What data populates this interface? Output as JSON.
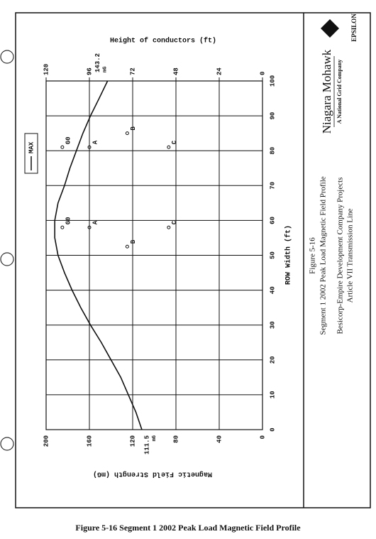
{
  "caption": "Figure 5-16 Segment 1 2002 Peak Load Magnetic Field Profile",
  "title_block": {
    "figure": "Figure 5-16",
    "title": "Segment 1 2002 Peak Load Magnetic Field Profile",
    "project": "Besicorp-Empire Development Company Projects",
    "line": "Article VII Transmission Line",
    "company": "Niagara Mohawk",
    "parent": "A National Grid Company",
    "consultant": "EPSILON"
  },
  "chart_data": {
    "type": "line",
    "x_label": "ROW Width (ft)",
    "y_label": "Magnetic Field Strength (mG)",
    "y2_label": "Height of conductors (ft)",
    "x": [
      0,
      5,
      10,
      15,
      20,
      25,
      30,
      35,
      40,
      45,
      50,
      55,
      60,
      65,
      70,
      75,
      80,
      85,
      90,
      95,
      100
    ],
    "series": [
      {
        "name": "MAX",
        "color": "#111111",
        "values": [
          111.5,
          117,
          124,
          131,
          140,
          149,
          159,
          168,
          176,
          183,
          189,
          192,
          192,
          189,
          183,
          178,
          172,
          166,
          159,
          151,
          143.2
        ]
      }
    ],
    "annotations": [
      {
        "x": 0,
        "value": 111.5,
        "unit": "mG"
      },
      {
        "x": 100,
        "value": 143.2,
        "unit": "mG"
      }
    ],
    "conductors": [
      {
        "label": "G0",
        "x": 58,
        "height": 111
      },
      {
        "label": "A",
        "x": 58,
        "height": 96
      },
      {
        "label": "B",
        "x": 52.5,
        "height": 75
      },
      {
        "label": "C",
        "x": 58,
        "height": 52
      },
      {
        "label": "G0",
        "x": 81,
        "height": 111
      },
      {
        "label": "A",
        "x": 81,
        "height": 96
      },
      {
        "label": "B",
        "x": 85,
        "height": 75
      },
      {
        "label": "C",
        "x": 81,
        "height": 52
      }
    ],
    "xlim": [
      0,
      100
    ],
    "ylim": [
      0,
      200
    ],
    "y2lim": [
      0,
      120
    ],
    "xticks": [
      0,
      10,
      20,
      30,
      40,
      50,
      60,
      70,
      80,
      90,
      100
    ],
    "yticks": [
      0,
      40,
      80,
      120,
      160,
      200
    ],
    "y2ticks": [
      0,
      24,
      48,
      72,
      96,
      120
    ],
    "grid": true,
    "legend": "top-right"
  }
}
